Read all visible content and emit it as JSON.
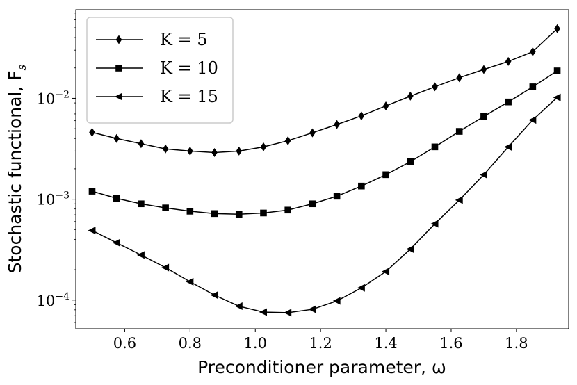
{
  "chart_data": {
    "type": "line",
    "title": "",
    "xlabel": "Preconditioner parameter, ω",
    "ylabel": "Stochastic functional, F",
    "ylabel_sub": "s",
    "xlim": [
      0.45,
      1.96
    ],
    "ylim": [
      5.2e-05,
      0.0755
    ],
    "yscale": "log",
    "grid": false,
    "legend_position": "top-left",
    "xticks": [
      {
        "value": 0.6,
        "label": "0.6"
      },
      {
        "value": 0.8,
        "label": "0.8"
      },
      {
        "value": 1.0,
        "label": "1.0"
      },
      {
        "value": 1.2,
        "label": "1.2"
      },
      {
        "value": 1.4,
        "label": "1.4"
      },
      {
        "value": 1.6,
        "label": "1.6"
      },
      {
        "value": 1.8,
        "label": "1.8"
      }
    ],
    "yticks": [
      {
        "value": 0.0001,
        "base": "10",
        "exp": "−4"
      },
      {
        "value": 0.001,
        "base": "10",
        "exp": "−3"
      },
      {
        "value": 0.01,
        "base": "10",
        "exp": "−2"
      }
    ],
    "x": [
      0.5,
      0.575,
      0.65,
      0.725,
      0.8,
      0.875,
      0.95,
      1.025,
      1.1,
      1.175,
      1.25,
      1.325,
      1.4,
      1.475,
      1.55,
      1.625,
      1.7,
      1.775,
      1.85,
      1.925
    ],
    "series": [
      {
        "name": "K = 5",
        "marker": "diamond",
        "values": [
          0.0046,
          0.004,
          0.00355,
          0.00315,
          0.003,
          0.0029,
          0.003,
          0.0033,
          0.0038,
          0.00455,
          0.0055,
          0.0067,
          0.0084,
          0.0105,
          0.013,
          0.016,
          0.0193,
          0.0232,
          0.029,
          0.049
        ]
      },
      {
        "name": "K = 10",
        "marker": "square",
        "values": [
          0.0012,
          0.00102,
          0.0009,
          0.00082,
          0.00076,
          0.00072,
          0.00071,
          0.00073,
          0.00078,
          0.0009,
          0.00107,
          0.00135,
          0.00175,
          0.00235,
          0.0033,
          0.0047,
          0.0066,
          0.0092,
          0.013,
          0.0187
        ]
      },
      {
        "name": "K = 15",
        "marker": "triangle-left",
        "values": [
          0.00049,
          0.00037,
          0.00028,
          0.00021,
          0.000152,
          0.000112,
          8.7e-05,
          7.6e-05,
          7.5e-05,
          8.1e-05,
          9.8e-05,
          0.000132,
          0.000192,
          0.00032,
          0.00057,
          0.00098,
          0.00175,
          0.0033,
          0.0061,
          0.0102
        ]
      }
    ]
  }
}
